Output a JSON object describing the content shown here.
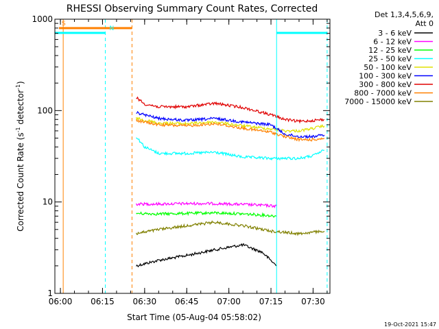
{
  "chart_data": {
    "type": "line",
    "title": "RHESSI Observing Summary Count Rates, Corrected",
    "xlabel": "Start Time (05-Aug-04 05:58:02)",
    "ylabel_main": "Corrected Count Rate (s",
    "ylabel_sup1": "-1",
    "ylabel_mid": " detector",
    "ylabel_sup2": "-1",
    "ylabel_end": ")",
    "y_scale": "log",
    "ylim": [
      1,
      1000
    ],
    "xlim": [
      "05:58:02",
      "07:36:00"
    ],
    "x_ticks": [
      "06:00",
      "06:15",
      "06:30",
      "06:45",
      "07:00",
      "07:15",
      "07:30"
    ],
    "y_ticks": [
      "1",
      "10",
      "100",
      "1000"
    ],
    "legend_header": [
      "Det 1,3,4,5,6,9,",
      "Att 0"
    ],
    "legend_placement": "right",
    "series": [
      {
        "name": "3 - 6 keV",
        "color": "#000000",
        "points": [
          [
            "06:27",
            2.0
          ],
          [
            "06:35",
            2.3
          ],
          [
            "06:45",
            2.6
          ],
          [
            "06:55",
            3.0
          ],
          [
            "07:05",
            3.4
          ],
          [
            "07:12",
            2.8
          ],
          [
            "07:17",
            2.0
          ]
        ]
      },
      {
        "name": "6 - 12 keV",
        "color": "#ff00ff",
        "points": [
          [
            "06:27",
            9.5
          ],
          [
            "06:35",
            9.5
          ],
          [
            "06:45",
            9.6
          ],
          [
            "06:55",
            9.6
          ],
          [
            "07:05",
            9.4
          ],
          [
            "07:12",
            9.2
          ],
          [
            "07:17",
            9.0
          ]
        ]
      },
      {
        "name": "12 - 25 keV",
        "color": "#00ff00",
        "points": [
          [
            "06:27",
            7.5
          ],
          [
            "06:35",
            7.4
          ],
          [
            "06:45",
            7.5
          ],
          [
            "06:55",
            7.6
          ],
          [
            "07:05",
            7.4
          ],
          [
            "07:12",
            7.2
          ],
          [
            "07:17",
            7.0
          ]
        ]
      },
      {
        "name": "25 - 50 keV",
        "color": "#00ffff",
        "points": [
          [
            "06:27",
            52
          ],
          [
            "06:30",
            40
          ],
          [
            "06:35",
            34
          ],
          [
            "06:45",
            34
          ],
          [
            "06:55",
            35
          ],
          [
            "07:05",
            31
          ],
          [
            "07:15",
            30
          ],
          [
            "07:25",
            30
          ],
          [
            "07:30",
            32
          ],
          [
            "07:34",
            37
          ]
        ]
      },
      {
        "name": "50 - 100 keV",
        "color": "#e0e000",
        "points": [
          [
            "06:27",
            82
          ],
          [
            "06:35",
            73
          ],
          [
            "06:45",
            72
          ],
          [
            "06:55",
            75
          ],
          [
            "07:05",
            68
          ],
          [
            "07:15",
            63
          ],
          [
            "07:20",
            60
          ],
          [
            "07:25",
            60
          ],
          [
            "07:30",
            64
          ],
          [
            "07:34",
            68
          ]
        ]
      },
      {
        "name": "100 - 300 keV",
        "color": "#0000ff",
        "points": [
          [
            "06:27",
            95
          ],
          [
            "06:35",
            82
          ],
          [
            "06:45",
            78
          ],
          [
            "06:55",
            82
          ],
          [
            "07:05",
            75
          ],
          [
            "07:15",
            70
          ],
          [
            "07:20",
            55
          ],
          [
            "07:25",
            52
          ],
          [
            "07:30",
            52
          ],
          [
            "07:34",
            54
          ]
        ]
      },
      {
        "name": "300 - 800 keV",
        "color": "#e00000",
        "points": [
          [
            "06:27",
            140
          ],
          [
            "06:30",
            118
          ],
          [
            "06:35",
            110
          ],
          [
            "06:45",
            110
          ],
          [
            "06:55",
            120
          ],
          [
            "07:05",
            108
          ],
          [
            "07:15",
            90
          ],
          [
            "07:20",
            80
          ],
          [
            "07:25",
            76
          ],
          [
            "07:30",
            78
          ],
          [
            "07:34",
            80
          ]
        ]
      },
      {
        "name": "800 - 7000 keV",
        "color": "#ff8000",
        "points": [
          [
            "06:27",
            78
          ],
          [
            "06:35",
            70
          ],
          [
            "06:45",
            68
          ],
          [
            "06:55",
            72
          ],
          [
            "07:05",
            64
          ],
          [
            "07:15",
            58
          ],
          [
            "07:20",
            52
          ],
          [
            "07:25",
            48
          ],
          [
            "07:30",
            48
          ],
          [
            "07:34",
            50
          ]
        ]
      },
      {
        "name": "7000 - 15000 keV",
        "color": "#808000",
        "points": [
          [
            "06:27",
            4.5
          ],
          [
            "06:35",
            5.0
          ],
          [
            "06:45",
            5.5
          ],
          [
            "06:55",
            6.0
          ],
          [
            "07:05",
            5.5
          ],
          [
            "07:15",
            4.8
          ],
          [
            "07:25",
            4.5
          ],
          [
            "07:34",
            4.8
          ]
        ]
      }
    ],
    "markers": [
      {
        "label": "S",
        "color": "#ff8000",
        "start": "05:59:30",
        "end": "06:25:30"
      },
      {
        "label": "N",
        "color": "#00ffff",
        "start": "05:58:02",
        "end": "06:16:00"
      },
      {
        "label": "",
        "color": "#00ffff",
        "start": "07:17:00",
        "end": "07:35:00"
      }
    ],
    "vertical_lines": [
      {
        "time": "05:58:02",
        "color": "#00ffff",
        "style": "solid"
      },
      {
        "time": "06:01:00",
        "color": "#ff8000",
        "style": "solid"
      },
      {
        "time": "06:16:00",
        "color": "#00ffff",
        "style": "dashed"
      },
      {
        "time": "06:25:30",
        "color": "#ff8000",
        "style": "dashed"
      },
      {
        "time": "07:17:00",
        "color": "#00ffff",
        "style": "solid"
      },
      {
        "time": "07:35:00",
        "color": "#00ffff",
        "style": "dashed"
      }
    ]
  },
  "footer_date": "19-Oct-2021 15:47"
}
